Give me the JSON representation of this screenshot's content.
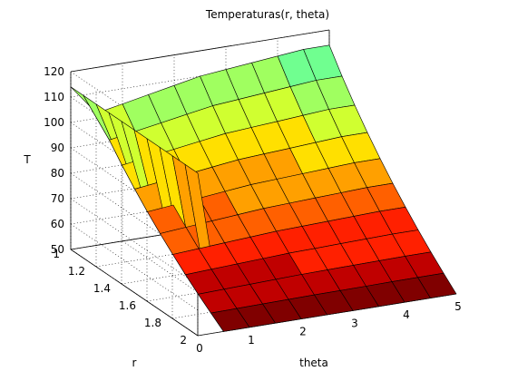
{
  "chart_data": {
    "type": "surface",
    "title": "Temperaturas(r, theta)",
    "xlabel": "theta",
    "ylabel": "r",
    "zlabel": "T",
    "x_ticks": [
      "0",
      "1",
      "2",
      "3",
      "4",
      "5"
    ],
    "y_ticks": [
      "1",
      "1.2",
      "1.4",
      "1.6",
      "1.8",
      "2"
    ],
    "z_ticks": [
      "50",
      "60",
      "70",
      "80",
      "90",
      "100",
      "110",
      "120"
    ],
    "xlim": [
      0,
      5
    ],
    "ylim": [
      1,
      2
    ],
    "zlim": [
      50,
      120
    ],
    "grid": true,
    "colormap": [
      "#800000",
      "#c00000",
      "#ff2000",
      "#ff6000",
      "#ffa000",
      "#ffe000",
      "#d0ff30",
      "#a0ff60",
      "#70ff90",
      "#40ffc0"
    ],
    "theta": [
      0,
      0.5,
      1,
      1.5,
      2,
      2.5,
      3,
      3.5,
      4,
      4.5,
      5
    ],
    "r": [
      1,
      1.1,
      1.2,
      1.3,
      1.4,
      1.5,
      1.6,
      1.7,
      1.8,
      1.9,
      2
    ],
    "boundary": {
      "T_at_r1": [
        100,
        102,
        104,
        106,
        108,
        110,
        111,
        112,
        113,
        114,
        114
      ],
      "T_at_r2": [
        50,
        50,
        50,
        50,
        50,
        50,
        50,
        50,
        50,
        50,
        50
      ],
      "T_at_theta0": 114
    }
  }
}
